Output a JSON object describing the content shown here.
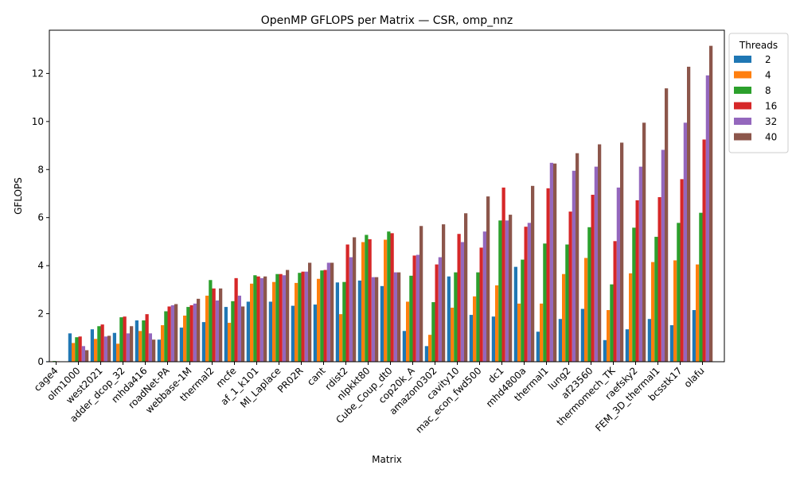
{
  "chart_data": {
    "type": "bar",
    "title": "OpenMP GFLOPS per Matrix — CSR, omp_nnz",
    "xlabel": "Matrix",
    "ylabel": "GFLOPS",
    "ylim": [
      0,
      13.8
    ],
    "yticks": [
      0,
      2,
      4,
      6,
      8,
      10,
      12
    ],
    "grid": false,
    "legend": {
      "title": "Threads",
      "placement": "outside-top-right"
    },
    "categories": [
      "cage4",
      "olm1000",
      "west2021",
      "adder_dcop_32",
      "mhda416",
      "roadNet-PA",
      "webbase-1M",
      "thermal2",
      "mcfe",
      "af_1_k101",
      "Ml_Laplace",
      "PR02R",
      "cant",
      "rdist2",
      "nlpkkt80",
      "Cube_Coup_dt0",
      "cop20k_A",
      "amazon0302",
      "cavity10",
      "mac_econ_fwd500",
      "dc1",
      "mhd4800a",
      "thermal1",
      "lung2",
      "af23560",
      "thermomech_TK",
      "raefsky2",
      "FEM_3D_thermal1",
      "bcsstk17",
      "olafu"
    ],
    "series": [
      {
        "name": "2",
        "color": "#1f77b4",
        "values": [
          0.02,
          1.18,
          1.35,
          1.2,
          1.72,
          0.92,
          1.42,
          1.65,
          2.28,
          2.5,
          2.5,
          2.33,
          2.38,
          3.3,
          3.38,
          3.15,
          1.28,
          0.65,
          3.55,
          1.95,
          1.88,
          3.95,
          1.25,
          1.78,
          2.2,
          0.9,
          1.35,
          1.78,
          1.52,
          2.15
        ]
      },
      {
        "name": "4",
        "color": "#ff7f0e",
        "values": [
          0.02,
          0.78,
          0.95,
          0.75,
          1.28,
          1.52,
          1.92,
          2.75,
          1.62,
          3.25,
          3.32,
          3.28,
          3.45,
          1.98,
          4.98,
          5.08,
          2.5,
          1.12,
          2.25,
          2.72,
          3.18,
          2.42,
          2.42,
          3.65,
          4.32,
          2.15,
          3.68,
          4.15,
          4.22,
          4.05
        ]
      },
      {
        "name": "8",
        "color": "#2ca02c",
        "values": [
          0.03,
          1.02,
          1.48,
          1.85,
          1.72,
          2.1,
          2.28,
          3.4,
          2.52,
          3.6,
          3.65,
          3.7,
          3.8,
          3.32,
          5.28,
          5.42,
          3.58,
          2.48,
          3.72,
          3.72,
          5.88,
          4.25,
          4.92,
          4.88,
          5.6,
          3.22,
          5.58,
          5.2,
          5.78,
          6.2
        ]
      },
      {
        "name": "16",
        "color": "#d62728",
        "values": [
          0.02,
          1.05,
          1.55,
          1.88,
          1.98,
          2.3,
          2.35,
          3.05,
          3.48,
          3.55,
          3.65,
          3.75,
          3.82,
          4.88,
          5.1,
          5.35,
          4.42,
          4.05,
          5.32,
          4.75,
          7.25,
          5.62,
          7.22,
          6.25,
          6.95,
          5.02,
          6.72,
          6.85,
          7.6,
          9.25
        ]
      },
      {
        "name": "32",
        "color": "#9467bd",
        "values": [
          0.0,
          0.65,
          1.05,
          1.18,
          1.18,
          2.35,
          2.42,
          2.55,
          2.75,
          3.48,
          3.6,
          3.75,
          4.12,
          4.35,
          3.52,
          3.72,
          4.45,
          4.35,
          4.98,
          5.42,
          5.88,
          5.78,
          8.28,
          7.95,
          8.12,
          7.25,
          8.12,
          8.82,
          9.95,
          11.92
        ]
      },
      {
        "name": "40",
        "color": "#8c564b",
        "values": [
          0.0,
          0.48,
          1.08,
          1.48,
          0.92,
          2.4,
          2.62,
          3.05,
          2.3,
          3.55,
          3.82,
          4.12,
          4.12,
          5.18,
          3.52,
          3.72,
          5.65,
          5.72,
          6.18,
          6.88,
          6.12,
          7.32,
          8.25,
          8.68,
          9.05,
          9.12,
          9.95,
          11.38,
          12.28,
          13.15
        ]
      }
    ]
  }
}
